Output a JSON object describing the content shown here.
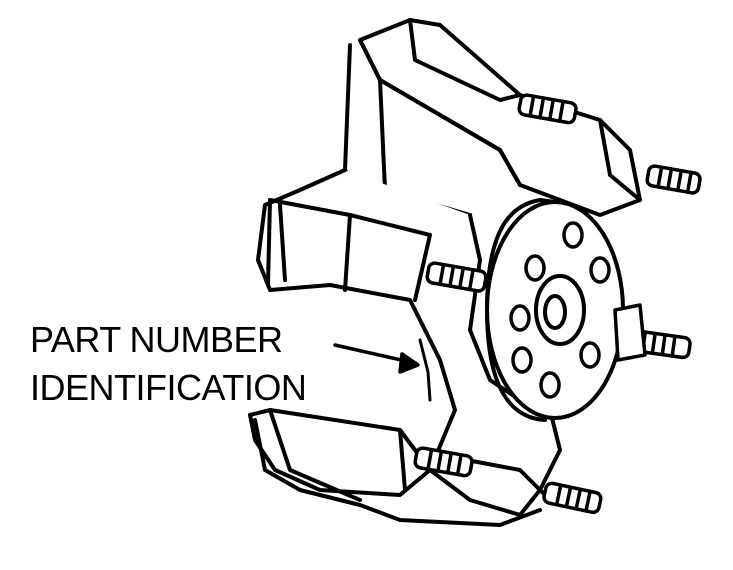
{
  "callout": {
    "line1": "PART NUMBER",
    "line2": "IDENTIFICATION"
  },
  "colors": {
    "ink": "#000000",
    "paper": "#ffffff"
  }
}
